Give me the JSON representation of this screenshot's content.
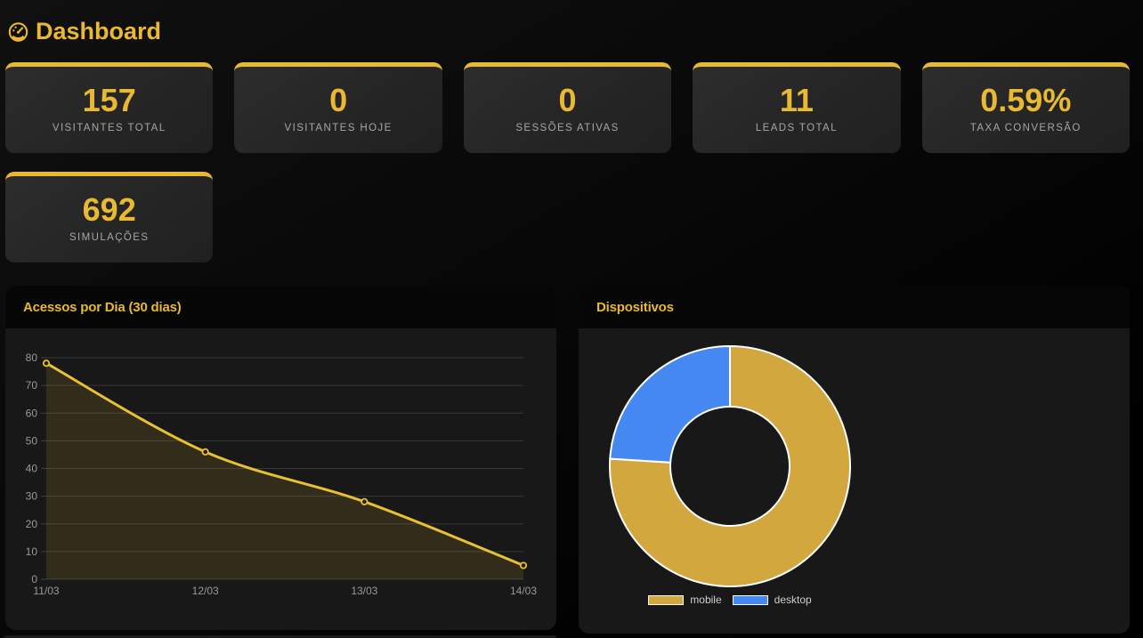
{
  "header": {
    "title": "Dashboard",
    "icon": "gauge-icon"
  },
  "accent_color": "#e9b932",
  "stats": [
    {
      "value": "157",
      "label": "VISITANTES TOTAL"
    },
    {
      "value": "0",
      "label": "VISITANTES HOJE"
    },
    {
      "value": "0",
      "label": "SESSÕES ATIVAS"
    },
    {
      "value": "11",
      "label": "LEADS TOTAL"
    },
    {
      "value": "0.59%",
      "label": "TAXA CONVERSÃO"
    },
    {
      "value": "692",
      "label": "SIMULAÇÕES"
    }
  ],
  "chart_data": [
    {
      "type": "line",
      "title": "Acessos por Dia (30 dias)",
      "x": [
        "11/03",
        "12/03",
        "13/03",
        "14/03"
      ],
      "series": [
        {
          "name": "acessos",
          "values": [
            78,
            46,
            28,
            5
          ]
        }
      ],
      "ylim": [
        0,
        80
      ],
      "yticks": [
        0,
        10,
        20,
        30,
        40,
        50,
        60,
        70,
        80
      ],
      "grid": true,
      "legend_position": "none",
      "line_color": "#e7c033",
      "fill_color": "rgba(231,192,51,0.13)",
      "grid_color": "#373737",
      "tick_color": "#999999"
    },
    {
      "type": "pie",
      "title": "Dispositivos",
      "labels": [
        "mobile",
        "desktop"
      ],
      "values": [
        76,
        24
      ],
      "colors": [
        "#d2a73e",
        "#4688f1"
      ],
      "border_color": "#ffffff",
      "donut": true,
      "legend_position": "bottom"
    }
  ]
}
